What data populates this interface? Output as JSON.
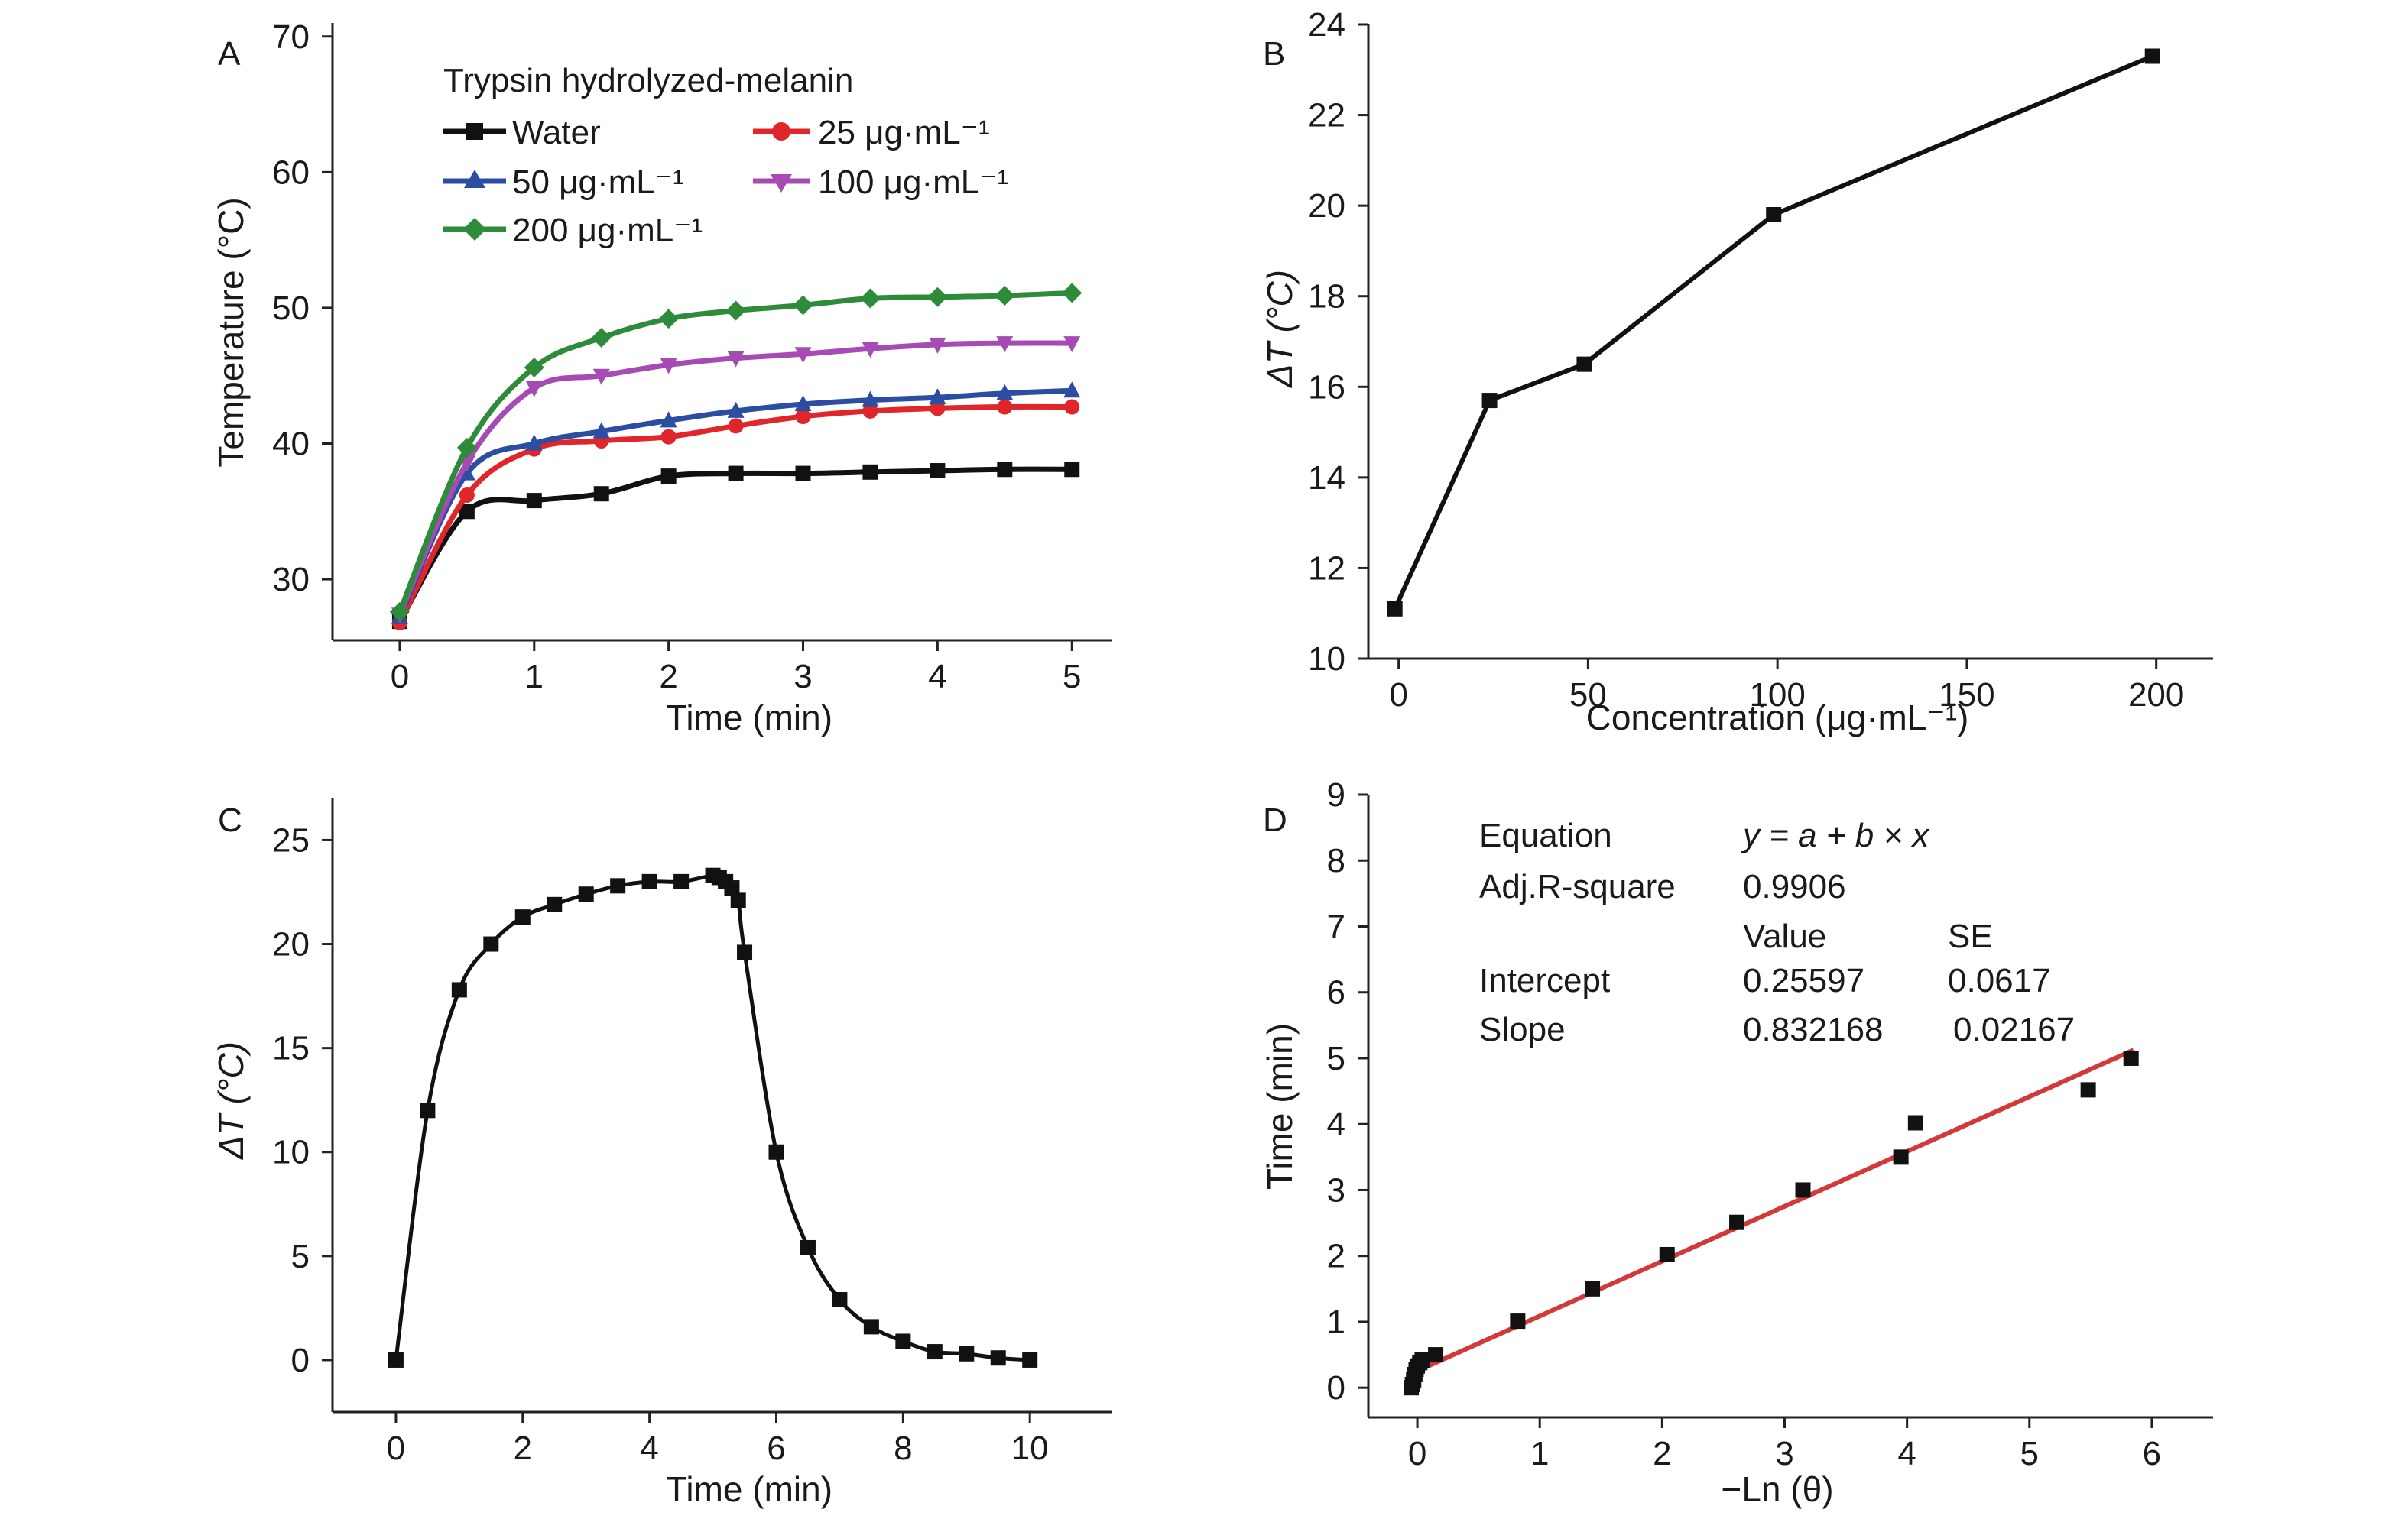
{
  "chart_data": [
    {
      "panel": "A",
      "type": "line",
      "legend_title": "Trypsin hydrolyzed-melanin",
      "xlabel": "Time (min)",
      "ylabel": "Temperature (°C)",
      "xlim": [
        -0.5,
        5.3
      ],
      "ylim": [
        25.5,
        71
      ],
      "xticks": [
        0,
        1,
        2,
        3,
        4,
        5
      ],
      "yticks": [
        30,
        40,
        50,
        60,
        70
      ],
      "legend_placement": "top-left",
      "x": [
        0,
        0.5,
        1,
        1.5,
        2,
        2.5,
        3,
        3.5,
        4,
        4.5,
        5
      ],
      "series": [
        {
          "name": "Water",
          "color": "#111111",
          "marker": "square",
          "values": [
            26.9,
            35.0,
            35.8,
            36.3,
            37.6,
            37.8,
            37.8,
            37.9,
            38.0,
            38.1,
            38.1
          ]
        },
        {
          "name": "25 μg·mL⁻¹",
          "color": "#e0262b",
          "marker": "circle",
          "values": [
            26.8,
            36.2,
            39.6,
            40.2,
            40.5,
            41.3,
            42.0,
            42.4,
            42.6,
            42.7,
            42.7
          ]
        },
        {
          "name": "50 μg·mL⁻¹",
          "color": "#2b4ea2",
          "marker": "triangle-up",
          "values": [
            27.2,
            37.8,
            40.0,
            40.9,
            41.7,
            42.4,
            42.9,
            43.2,
            43.4,
            43.7,
            43.9
          ]
        },
        {
          "name": "100 μg·mL⁻¹",
          "color": "#a64ab4",
          "marker": "triangle-down",
          "values": [
            27.4,
            38.6,
            44.1,
            45.0,
            45.8,
            46.3,
            46.6,
            47.0,
            47.3,
            47.4,
            47.4
          ]
        },
        {
          "name": "200 μg·mL⁻¹",
          "color": "#2e8b3a",
          "marker": "diamond",
          "values": [
            27.6,
            39.7,
            45.6,
            47.8,
            49.2,
            49.8,
            50.2,
            50.7,
            50.8,
            50.9,
            51.1
          ]
        }
      ]
    },
    {
      "panel": "B",
      "type": "line",
      "xlabel": "Concentration (μg·mL⁻¹)",
      "ylabel": "ΔT (°C)",
      "xlim": [
        -8,
        215
      ],
      "ylim": [
        10,
        24
      ],
      "xticks": [
        0,
        50,
        100,
        150,
        200
      ],
      "yticks": [
        10,
        12,
        14,
        16,
        18,
        20,
        22,
        24
      ],
      "series": [
        {
          "color": "#111111",
          "marker": "square",
          "x": [
            -1,
            24,
            49,
            99,
            199
          ],
          "values": [
            11.1,
            15.7,
            16.5,
            19.8,
            23.3
          ]
        }
      ]
    },
    {
      "panel": "C",
      "type": "line",
      "xlabel": "Time (min)",
      "ylabel": "ΔT (°C)",
      "xlim": [
        -1,
        11.3
      ],
      "ylim": [
        -2.5,
        27
      ],
      "xticks": [
        0,
        2,
        4,
        6,
        8,
        10
      ],
      "yticks": [
        0,
        5,
        10,
        15,
        20,
        25
      ],
      "series": [
        {
          "color": "#111111",
          "marker": "square",
          "x": [
            0,
            0.5,
            1,
            1.5,
            2,
            2.5,
            3,
            3.5,
            4,
            4.5,
            5,
            5.1,
            5.2,
            5.3,
            5.4,
            5.5,
            6,
            6.5,
            7,
            7.5,
            8,
            8.5,
            9,
            9.5,
            10
          ],
          "values": [
            0,
            12.0,
            17.8,
            20.0,
            21.3,
            21.9,
            22.4,
            22.8,
            23.0,
            23.0,
            23.3,
            23.2,
            23.0,
            22.7,
            22.1,
            19.6,
            10.0,
            5.4,
            2.9,
            1.6,
            0.9,
            0.4,
            0.3,
            0.1,
            0.0
          ]
        }
      ]
    },
    {
      "panel": "D",
      "type": "scatter",
      "xlabel": "−Ln (θ)",
      "ylabel": "Time (min)",
      "xlim": [
        -0.4,
        6.5
      ],
      "ylim": [
        -0.45,
        9
      ],
      "xticks": [
        0,
        1,
        2,
        3,
        4,
        5,
        6
      ],
      "yticks": [
        0,
        1,
        2,
        3,
        4,
        5,
        6,
        7,
        8,
        9
      ],
      "points": {
        "x": [
          -0.05,
          -0.04,
          -0.03,
          -0.02,
          -0.01,
          0.0,
          0.02,
          0.04,
          0.15,
          0.82,
          1.43,
          2.04,
          2.61,
          3.15,
          3.95,
          4.07,
          5.48,
          5.83
        ],
        "y": [
          0.0,
          0.05,
          0.12,
          0.2,
          0.28,
          0.33,
          0.38,
          0.42,
          0.5,
          1.01,
          1.5,
          2.02,
          2.51,
          3.0,
          3.5,
          4.02,
          4.52,
          5.0
        ],
        "color": "#111111"
      },
      "fit_line": {
        "intercept": 0.25597,
        "slope": 0.832168,
        "x_range": [
          -0.01,
          5.85
        ],
        "color": "#d23a3a"
      },
      "stats": {
        "equation_label": "Equation",
        "equation_value": "y = a + b × x",
        "adjr_label": "Adj.R-square",
        "adjr_value": "0.9906",
        "value_header": "Value",
        "se_header": "SE",
        "intercept_label": "Intercept",
        "intercept_value": "0.25597",
        "intercept_se": "0.0617",
        "slope_label": "Slope",
        "slope_value": "0.832168",
        "slope_se": "0.02167"
      }
    }
  ]
}
